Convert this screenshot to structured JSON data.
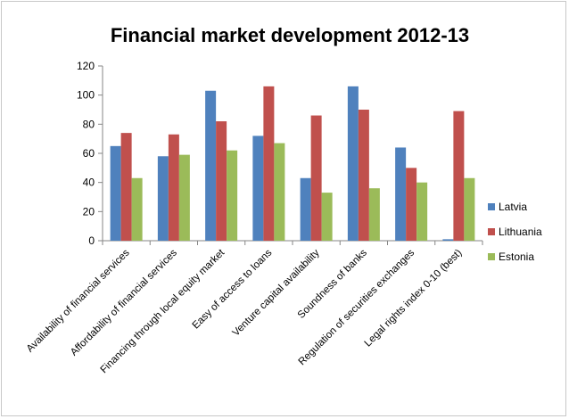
{
  "chart_data": {
    "type": "bar",
    "title": "Financial market development  2012-13",
    "xlabel": "",
    "ylabel": "",
    "ylim": [
      0,
      120
    ],
    "yticks": [
      0,
      20,
      40,
      60,
      80,
      100,
      120
    ],
    "grid": false,
    "legend_position": "right",
    "categories": [
      "Availability of financial services",
      "Affordability of financial services",
      "Financing through local equity market",
      "Easy of access to loans",
      "Venture capital availability",
      "Soundness of banks",
      "Regulation of securities exchanges",
      "Legal rights index 0-10 (best)"
    ],
    "series": [
      {
        "name": "Latvia",
        "color": "#4f81bd",
        "values": [
          65,
          58,
          103,
          72,
          43,
          106,
          64,
          1
        ]
      },
      {
        "name": "Lithuania",
        "color": "#c0504d",
        "values": [
          74,
          73,
          82,
          106,
          86,
          90,
          50,
          89
        ]
      },
      {
        "name": "Estonia",
        "color": "#9bbb59",
        "values": [
          43,
          59,
          62,
          67,
          33,
          36,
          40,
          43
        ]
      }
    ]
  }
}
